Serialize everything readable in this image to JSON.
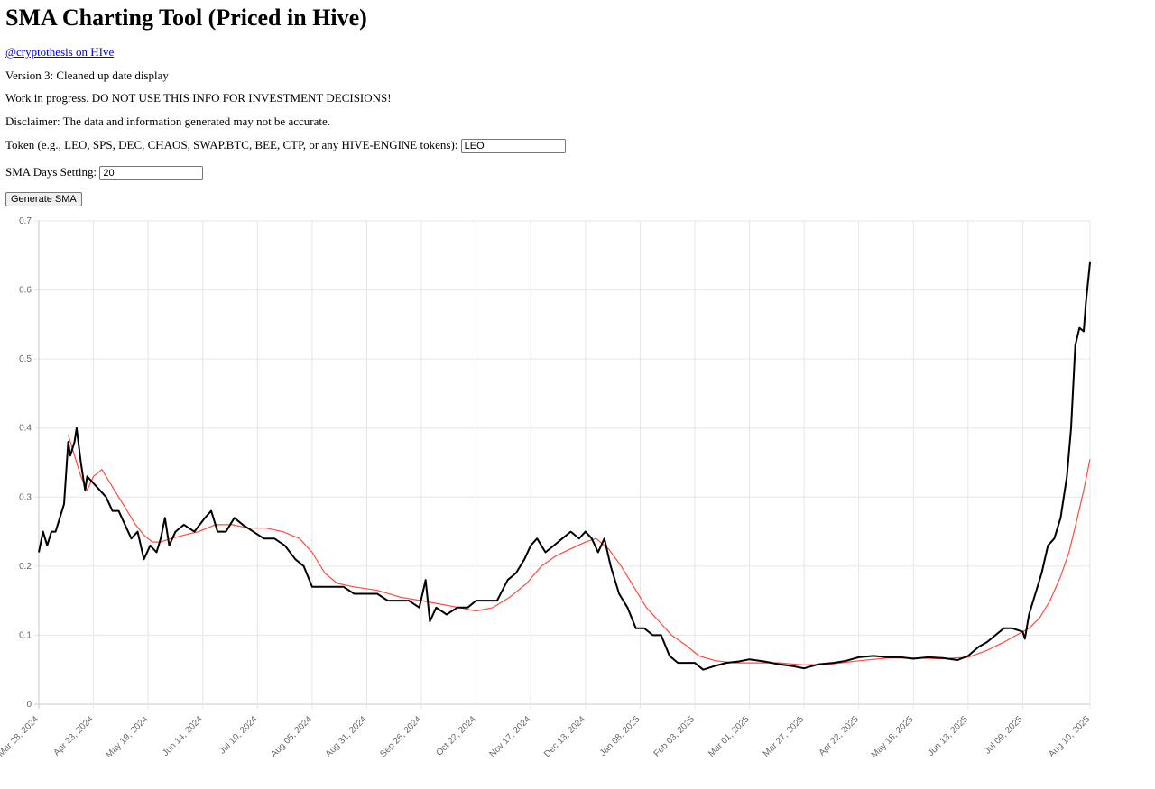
{
  "page": {
    "title": "SMA Charting Tool (Priced in Hive)",
    "author_link": "@cryptothesis on HIve",
    "version": "Version 3: Cleaned up date display",
    "warning": "Work in progress. DO NOT USE THIS INFO FOR INVESTMENT DECISIONS!",
    "disclaimer": "Disclaimer: The data and information generated may not be accurate."
  },
  "form": {
    "token_label": "Token (e.g., LEO, SPS, DEC, CHAOS, SWAP.BTC, BEE, CTP, or any HIVE-ENGINE tokens):",
    "token_value": "LEO",
    "sma_label": "SMA Days Setting:",
    "sma_value": "20",
    "generate_label": "Generate SMA"
  },
  "chart_data": {
    "type": "line",
    "ylim": [
      0,
      0.7
    ],
    "y_ticks": [
      "0",
      "0.1",
      "0.2",
      "0.3",
      "0.4",
      "0.5",
      "0.6",
      "0.7"
    ],
    "grid": true,
    "x_ticks": [
      "Mar 28, 2024",
      "Apr 23, 2024",
      "May 19, 2024",
      "Jun 14, 2024",
      "Jul 10, 2024",
      "Aug 05, 2024",
      "Aug 31, 2024",
      "Sep 26, 2024",
      "Oct 22, 2024",
      "Nov 17, 2024",
      "Dec 13, 2024",
      "Jan 08, 2025",
      "Feb 03, 2025",
      "Mar 01, 2025",
      "Mar 27, 2025",
      "Apr 22, 2025",
      "May 18, 2025",
      "Jun 13, 2025",
      "Jul 09, 2025",
      "Aug 10, 2025"
    ],
    "series": [
      {
        "color": "#000000",
        "points": [
          [
            "Mar 28, 2024",
            0.22
          ],
          [
            "Mar 30, 2024",
            0.25
          ],
          [
            "Apr 01, 2024",
            0.23
          ],
          [
            "Apr 03, 2024",
            0.25
          ],
          [
            "Apr 05, 2024",
            0.25
          ],
          [
            "Apr 07, 2024",
            0.27
          ],
          [
            "Apr 09, 2024",
            0.29
          ],
          [
            "Apr 11, 2024",
            0.38
          ],
          [
            "Apr 12, 2024",
            0.36
          ],
          [
            "Apr 14, 2024",
            0.38
          ],
          [
            "Apr 15, 2024",
            0.4
          ],
          [
            "Apr 17, 2024",
            0.35
          ],
          [
            "Apr 19, 2024",
            0.31
          ],
          [
            "Apr 20, 2024",
            0.33
          ],
          [
            "Apr 23, 2024",
            0.32
          ],
          [
            "Apr 26, 2024",
            0.31
          ],
          [
            "Apr 29, 2024",
            0.3
          ],
          [
            "May 02, 2024",
            0.28
          ],
          [
            "May 05, 2024",
            0.28
          ],
          [
            "May 08, 2024",
            0.26
          ],
          [
            "May 11, 2024",
            0.24
          ],
          [
            "May 14, 2024",
            0.25
          ],
          [
            "May 17, 2024",
            0.21
          ],
          [
            "May 20, 2024",
            0.23
          ],
          [
            "May 23, 2024",
            0.22
          ],
          [
            "May 25, 2024",
            0.24
          ],
          [
            "May 27, 2024",
            0.27
          ],
          [
            "May 29, 2024",
            0.23
          ],
          [
            "Jun 01, 2024",
            0.25
          ],
          [
            "Jun 05, 2024",
            0.26
          ],
          [
            "Jun 10, 2024",
            0.25
          ],
          [
            "Jun 15, 2024",
            0.27
          ],
          [
            "Jun 18, 2024",
            0.28
          ],
          [
            "Jun 21, 2024",
            0.25
          ],
          [
            "Jun 25, 2024",
            0.25
          ],
          [
            "Jun 29, 2024",
            0.27
          ],
          [
            "Jul 03, 2024",
            0.26
          ],
          [
            "Jul 08, 2024",
            0.25
          ],
          [
            "Jul 13, 2024",
            0.24
          ],
          [
            "Jul 18, 2024",
            0.24
          ],
          [
            "Jul 23, 2024",
            0.23
          ],
          [
            "Jul 28, 2024",
            0.21
          ],
          [
            "Aug 01, 2024",
            0.2
          ],
          [
            "Aug 05, 2024",
            0.17
          ],
          [
            "Aug 10, 2024",
            0.17
          ],
          [
            "Aug 15, 2024",
            0.17
          ],
          [
            "Aug 20, 2024",
            0.17
          ],
          [
            "Aug 25, 2024",
            0.16
          ],
          [
            "Aug 31, 2024",
            0.16
          ],
          [
            "Sep 05, 2024",
            0.16
          ],
          [
            "Sep 10, 2024",
            0.15
          ],
          [
            "Sep 15, 2024",
            0.15
          ],
          [
            "Sep 20, 2024",
            0.15
          ],
          [
            "Sep 25, 2024",
            0.14
          ],
          [
            "Sep 28, 2024",
            0.18
          ],
          [
            "Sep 30, 2024",
            0.12
          ],
          [
            "Oct 03, 2024",
            0.14
          ],
          [
            "Oct 08, 2024",
            0.13
          ],
          [
            "Oct 13, 2024",
            0.14
          ],
          [
            "Oct 18, 2024",
            0.14
          ],
          [
            "Oct 22, 2024",
            0.15
          ],
          [
            "Oct 27, 2024",
            0.15
          ],
          [
            "Nov 01, 2024",
            0.15
          ],
          [
            "Nov 06, 2024",
            0.18
          ],
          [
            "Nov 10, 2024",
            0.19
          ],
          [
            "Nov 14, 2024",
            0.21
          ],
          [
            "Nov 17, 2024",
            0.23
          ],
          [
            "Nov 20, 2024",
            0.24
          ],
          [
            "Nov 24, 2024",
            0.22
          ],
          [
            "Nov 28, 2024",
            0.23
          ],
          [
            "Dec 02, 2024",
            0.24
          ],
          [
            "Dec 06, 2024",
            0.25
          ],
          [
            "Dec 10, 2024",
            0.24
          ],
          [
            "Dec 13, 2024",
            0.25
          ],
          [
            "Dec 16, 2024",
            0.24
          ],
          [
            "Dec 19, 2024",
            0.22
          ],
          [
            "Dec 22, 2024",
            0.24
          ],
          [
            "Dec 25, 2024",
            0.2
          ],
          [
            "Dec 29, 2024",
            0.16
          ],
          [
            "Jan 02, 2025",
            0.14
          ],
          [
            "Jan 06, 2025",
            0.11
          ],
          [
            "Jan 10, 2025",
            0.11
          ],
          [
            "Jan 14, 2025",
            0.1
          ],
          [
            "Jan 18, 2025",
            0.1
          ],
          [
            "Jan 22, 2025",
            0.07
          ],
          [
            "Jan 26, 2025",
            0.06
          ],
          [
            "Jan 30, 2025",
            0.06
          ],
          [
            "Feb 03, 2025",
            0.06
          ],
          [
            "Feb 07, 2025",
            0.05
          ],
          [
            "Feb 12, 2025",
            0.055
          ],
          [
            "Feb 18, 2025",
            0.06
          ],
          [
            "Feb 24, 2025",
            0.062
          ],
          [
            "Mar 01, 2025",
            0.065
          ],
          [
            "Mar 08, 2025",
            0.062
          ],
          [
            "Mar 15, 2025",
            0.058
          ],
          [
            "Mar 22, 2025",
            0.055
          ],
          [
            "Mar 27, 2025",
            0.052
          ],
          [
            "Apr 03, 2025",
            0.058
          ],
          [
            "Apr 10, 2025",
            0.06
          ],
          [
            "Apr 16, 2025",
            0.063
          ],
          [
            "Apr 22, 2025",
            0.068
          ],
          [
            "Apr 29, 2025",
            0.07
          ],
          [
            "May 06, 2025",
            0.068
          ],
          [
            "May 12, 2025",
            0.068
          ],
          [
            "May 18, 2025",
            0.066
          ],
          [
            "May 25, 2025",
            0.068
          ],
          [
            "Jun 01, 2025",
            0.067
          ],
          [
            "Jun 08, 2025",
            0.064
          ],
          [
            "Jun 13, 2025",
            0.07
          ],
          [
            "Jun 18, 2025",
            0.083
          ],
          [
            "Jun 22, 2025",
            0.09
          ],
          [
            "Jun 26, 2025",
            0.1
          ],
          [
            "Jun 30, 2025",
            0.11
          ],
          [
            "Jul 04, 2025",
            0.11
          ],
          [
            "Jul 09, 2025",
            0.105
          ],
          [
            "Jul 10, 2025",
            0.095
          ],
          [
            "Jul 12, 2025",
            0.13
          ],
          [
            "Jul 15, 2025",
            0.16
          ],
          [
            "Jul 18, 2025",
            0.19
          ],
          [
            "Jul 21, 2025",
            0.23
          ],
          [
            "Jul 24, 2025",
            0.24
          ],
          [
            "Jul 27, 2025",
            0.27
          ],
          [
            "Jul 30, 2025",
            0.33
          ],
          [
            "Aug 01, 2025",
            0.4
          ],
          [
            "Aug 03, 2025",
            0.52
          ],
          [
            "Aug 05, 2025",
            0.545
          ],
          [
            "Aug 07, 2025",
            0.54
          ],
          [
            "Aug 08, 2025",
            0.58
          ],
          [
            "Aug 10, 2025",
            0.64
          ]
        ]
      },
      {
        "color": "#ff4a3d",
        "points": [
          [
            "Apr 11, 2024",
            0.39
          ],
          [
            "Apr 14, 2024",
            0.36
          ],
          [
            "Apr 17, 2024",
            0.33
          ],
          [
            "Apr 20, 2024",
            0.31
          ],
          [
            "Apr 23, 2024",
            0.33
          ],
          [
            "Apr 27, 2024",
            0.34
          ],
          [
            "May 01, 2024",
            0.32
          ],
          [
            "May 05, 2024",
            0.3
          ],
          [
            "May 09, 2024",
            0.28
          ],
          [
            "May 13, 2024",
            0.26
          ],
          [
            "May 17, 2024",
            0.245
          ],
          [
            "May 21, 2024",
            0.235
          ],
          [
            "May 25, 2024",
            0.235
          ],
          [
            "May 30, 2024",
            0.24
          ],
          [
            "Jun 05, 2024",
            0.245
          ],
          [
            "Jun 12, 2024",
            0.25
          ],
          [
            "Jun 20, 2024",
            0.26
          ],
          [
            "Jun 28, 2024",
            0.26
          ],
          [
            "Jul 06, 2024",
            0.255
          ],
          [
            "Jul 14, 2024",
            0.255
          ],
          [
            "Jul 22, 2024",
            0.25
          ],
          [
            "Jul 30, 2024",
            0.24
          ],
          [
            "Aug 05, 2024",
            0.22
          ],
          [
            "Aug 11, 2024",
            0.19
          ],
          [
            "Aug 17, 2024",
            0.175
          ],
          [
            "Aug 25, 2024",
            0.17
          ],
          [
            "Sep 05, 2024",
            0.165
          ],
          [
            "Sep 16, 2024",
            0.155
          ],
          [
            "Sep 26, 2024",
            0.15
          ],
          [
            "Oct 05, 2024",
            0.145
          ],
          [
            "Oct 14, 2024",
            0.14
          ],
          [
            "Oct 22, 2024",
            0.135
          ],
          [
            "Oct 30, 2024",
            0.14
          ],
          [
            "Nov 07, 2024",
            0.155
          ],
          [
            "Nov 15, 2024",
            0.175
          ],
          [
            "Nov 22, 2024",
            0.2
          ],
          [
            "Nov 29, 2024",
            0.215
          ],
          [
            "Dec 06, 2024",
            0.225
          ],
          [
            "Dec 13, 2024",
            0.235
          ],
          [
            "Dec 18, 2024",
            0.24
          ],
          [
            "Dec 24, 2024",
            0.225
          ],
          [
            "Dec 30, 2024",
            0.2
          ],
          [
            "Jan 05, 2025",
            0.17
          ],
          [
            "Jan 11, 2025",
            0.14
          ],
          [
            "Jan 17, 2025",
            0.12
          ],
          [
            "Jan 23, 2025",
            0.1
          ],
          [
            "Jan 30, 2025",
            0.085
          ],
          [
            "Feb 05, 2025",
            0.07
          ],
          [
            "Feb 13, 2025",
            0.063
          ],
          [
            "Feb 22, 2025",
            0.06
          ],
          [
            "Mar 03, 2025",
            0.06
          ],
          [
            "Mar 15, 2025",
            0.06
          ],
          [
            "Mar 27, 2025",
            0.057
          ],
          [
            "Apr 08, 2025",
            0.058
          ],
          [
            "Apr 22, 2025",
            0.063
          ],
          [
            "May 06, 2025",
            0.067
          ],
          [
            "May 18, 2025",
            0.067
          ],
          [
            "Jun 01, 2025",
            0.066
          ],
          [
            "Jun 13, 2025",
            0.068
          ],
          [
            "Jun 22, 2025",
            0.078
          ],
          [
            "Jun 30, 2025",
            0.09
          ],
          [
            "Jul 06, 2025",
            0.1
          ],
          [
            "Jul 12, 2025",
            0.11
          ],
          [
            "Jul 17, 2025",
            0.125
          ],
          [
            "Jul 22, 2025",
            0.15
          ],
          [
            "Jul 27, 2025",
            0.185
          ],
          [
            "Jul 31, 2025",
            0.22
          ],
          [
            "Aug 04, 2025",
            0.27
          ],
          [
            "Aug 07, 2025",
            0.31
          ],
          [
            "Aug 10, 2025",
            0.355
          ]
        ]
      }
    ]
  }
}
